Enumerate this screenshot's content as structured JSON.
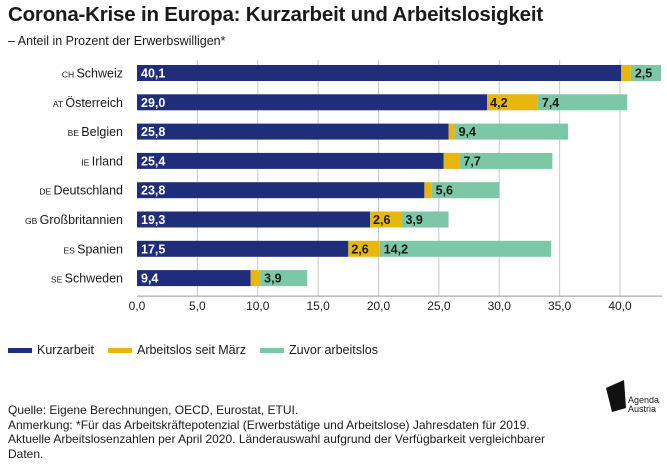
{
  "header": {
    "title": "Corona-Krise in Europa: Kurzarbeit und Arbeitslosigkeit",
    "subtitle": "– Anteil in Prozent der Erwerbswilligen*"
  },
  "colors": {
    "kurzarbeit": "#1f2d7a",
    "arbeitslos_seit_maerz": "#e8b70e",
    "zuvor_arbeitslos": "#7cc7a6",
    "grid": "#c8c8c8"
  },
  "chart_data": {
    "type": "bar",
    "orientation": "horizontal",
    "stacked": true,
    "categories": [
      {
        "code": "CH",
        "name": "Schweiz"
      },
      {
        "code": "AT",
        "name": "Österreich"
      },
      {
        "code": "BE",
        "name": "Belgien"
      },
      {
        "code": "IE",
        "name": "Irland"
      },
      {
        "code": "DE",
        "name": "Deutschland"
      },
      {
        "code": "GB",
        "name": "Großbritannien"
      },
      {
        "code": "ES",
        "name": "Spanien"
      },
      {
        "code": "SE",
        "name": "Schweden"
      }
    ],
    "series": [
      {
        "name": "Kurzarbeit",
        "color": "#1f2d7a",
        "values": [
          40.1,
          29.0,
          25.8,
          25.4,
          23.8,
          19.3,
          17.5,
          9.4
        ],
        "labels": [
          "40,1",
          "29,0",
          "25,8",
          "25,4",
          "23,8",
          "19,3",
          "17,5",
          "9,4"
        ]
      },
      {
        "name": "Arbeitslos seit März",
        "color": "#e8b70e",
        "values": [
          0.8,
          4.2,
          0.5,
          1.3,
          0.6,
          2.6,
          2.6,
          0.8
        ],
        "labels": [
          "",
          "4,2",
          "",
          "",
          "",
          "2,6",
          "2,6",
          ""
        ]
      },
      {
        "name": "Zuvor arbeitslos",
        "color": "#7cc7a6",
        "values": [
          2.5,
          7.4,
          9.4,
          7.7,
          5.6,
          3.9,
          14.2,
          3.9
        ],
        "labels": [
          "2,5",
          "7,4",
          "9,4",
          "7,7",
          "5,6",
          "3,9",
          "14,2",
          "3,9"
        ]
      }
    ],
    "xlim": [
      0,
      43.5
    ],
    "xticks": [
      0,
      5,
      10,
      15,
      20,
      25,
      30,
      35,
      40
    ],
    "xtick_labels": [
      "0,0",
      "5,0",
      "10,0",
      "15,0",
      "20,0",
      "25,0",
      "30,0",
      "35,0",
      "40,0"
    ],
    "grid": true,
    "legend_position": "bottom-left"
  },
  "legend": {
    "items": [
      {
        "label": "Kurzarbeit",
        "color": "#1f2d7a"
      },
      {
        "label": "Arbeitslos seit März",
        "color": "#e8b70e"
      },
      {
        "label": "Zuvor arbeitslos",
        "color": "#7cc7a6"
      }
    ]
  },
  "footer": {
    "source": "Quelle: Eigene Berechnungen, OECD, Eurostat, ETUI.",
    "note_line1": "Anmerkung: *Für das Arbeitskräftepotenzial (Erwerbstätige und Arbeitslose) Jahresdaten für 2019.",
    "note_line2": "Aktuelle Arbeitslosenzahlen per April 2020. Länderauswahl aufgrund der Verfügbarkeit vergleichbarer",
    "note_line3": "Daten."
  },
  "logo": {
    "line1": "Agenda",
    "line2": "Austria"
  }
}
